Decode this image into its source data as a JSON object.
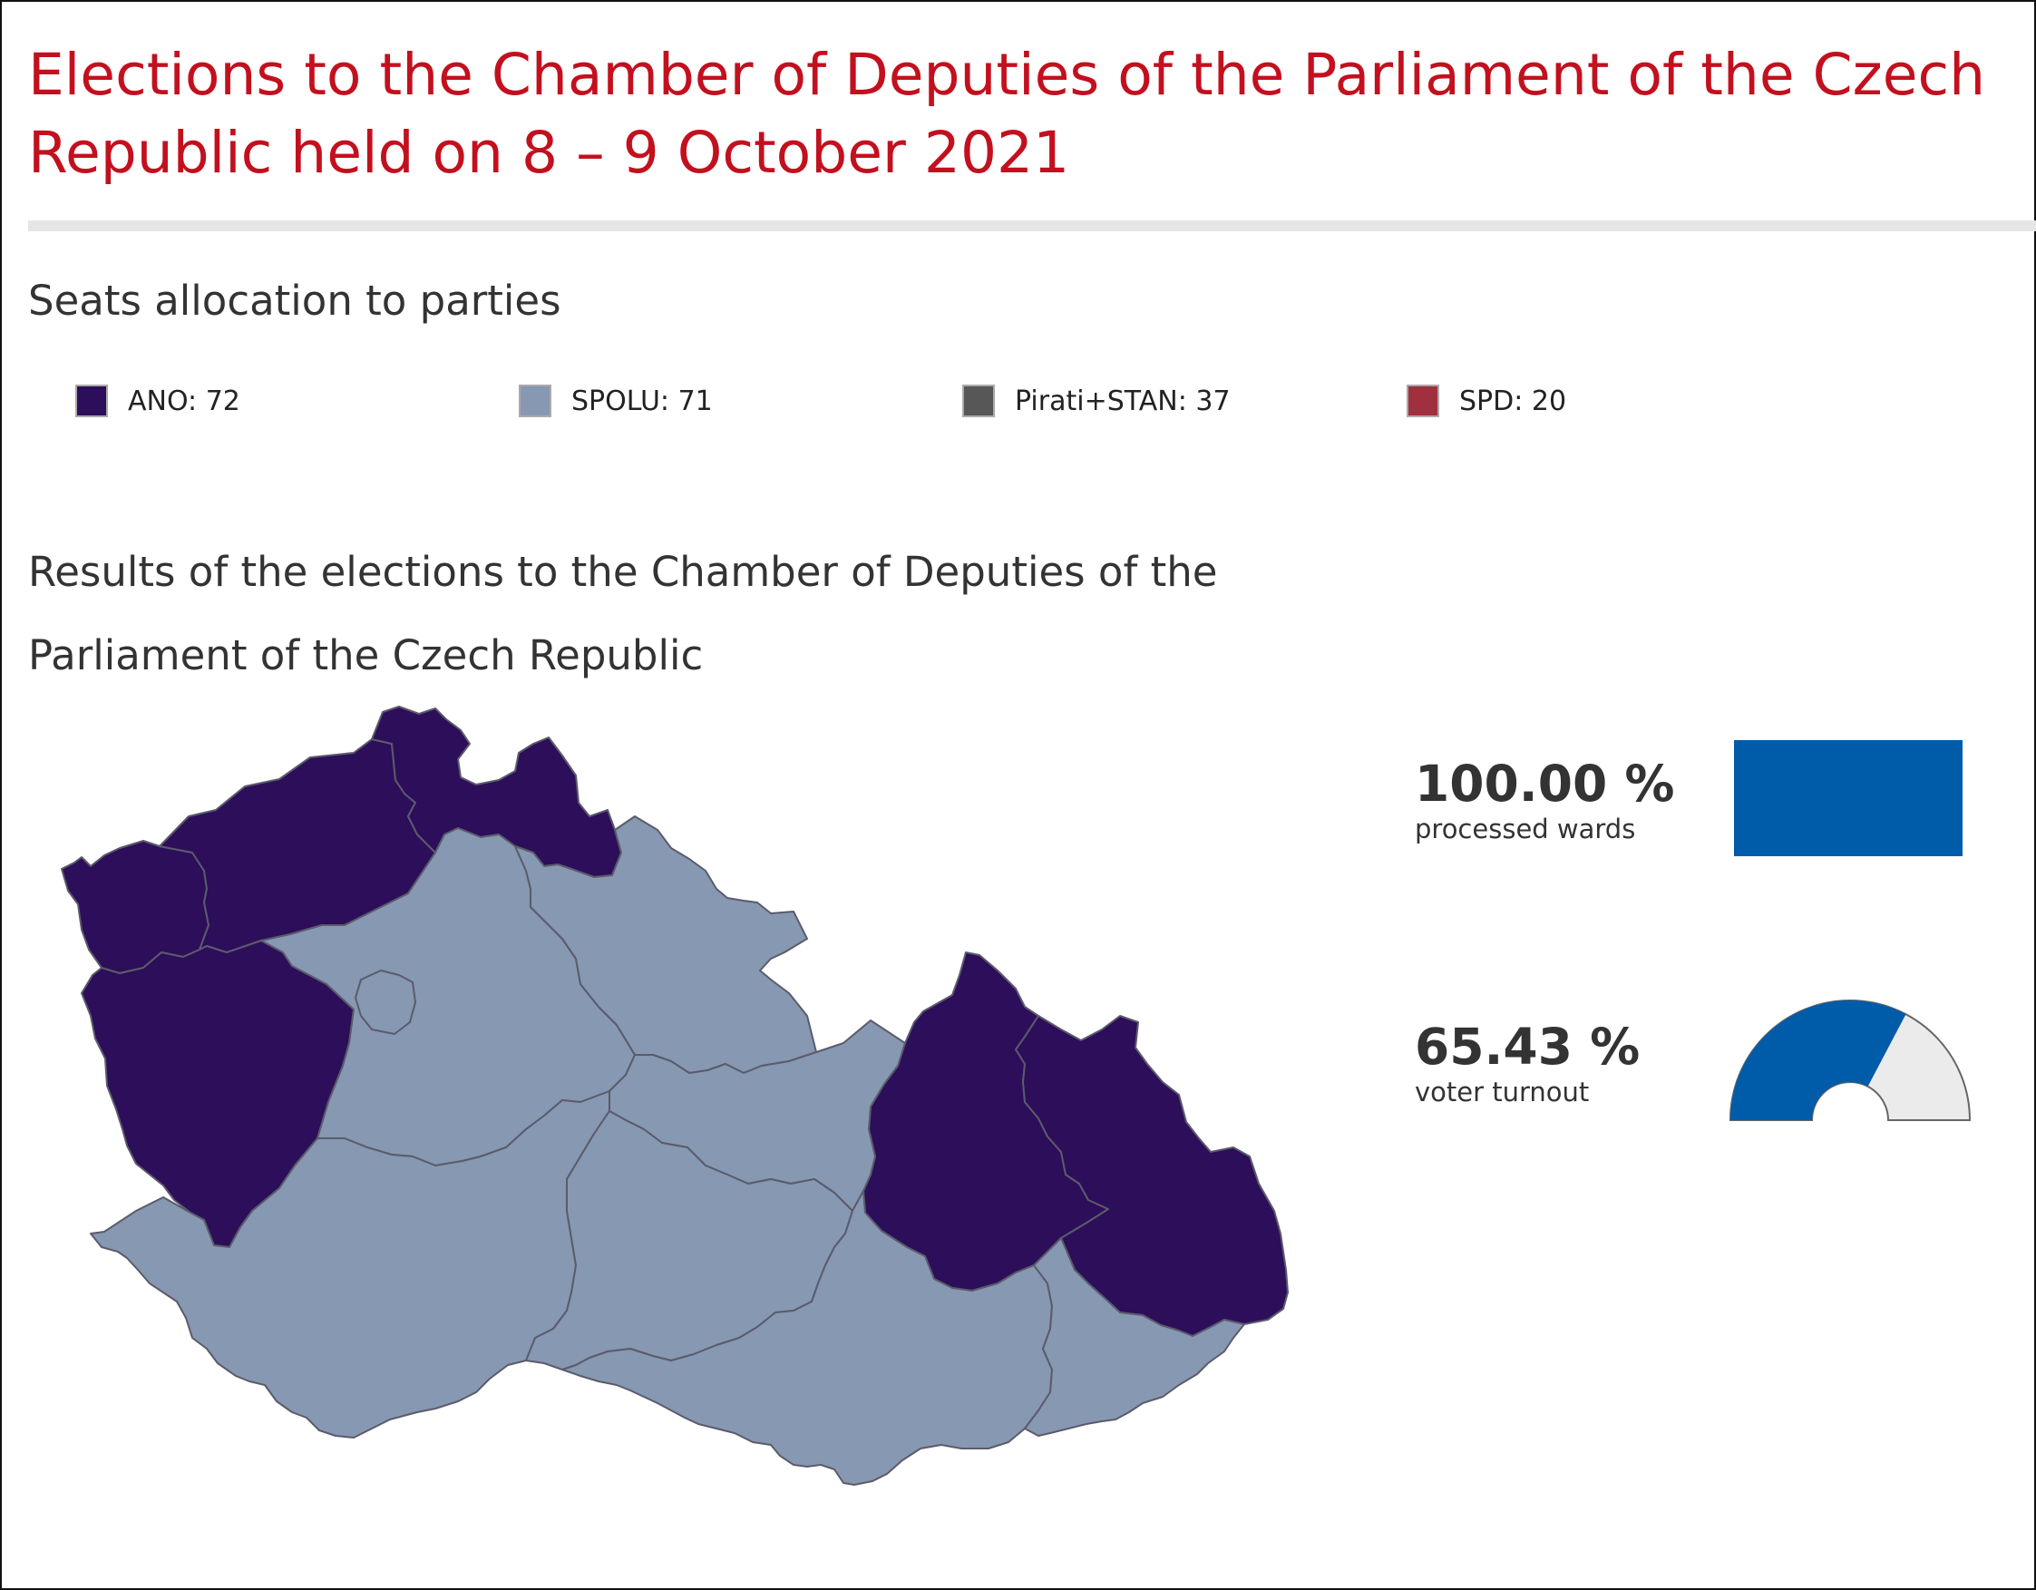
{
  "header": {
    "title": "Elections to the Chamber of Deputies of the Parliament of the Czech Republic held on 8 – 9 October 2021"
  },
  "seats_section": {
    "heading": "Seats allocation to parties",
    "parties": [
      {
        "label": "ANO: 72",
        "color": "#2d0e5a"
      },
      {
        "label": "SPOLU: 71",
        "color": "#8698b2"
      },
      {
        "label": "Pirati+STAN: 37",
        "color": "#575757"
      },
      {
        "label": "SPD: 20",
        "color": "#a0303e"
      }
    ]
  },
  "results_section": {
    "heading": "Results of the elections to the Chamber of Deputies of the Parliament of the Czech Republic",
    "regions": [
      {
        "name": "Karlovarsky",
        "winner": "ANO",
        "color": "#2d0e5a"
      },
      {
        "name": "Ustecky",
        "winner": "ANO",
        "color": "#2d0e5a"
      },
      {
        "name": "Liberecky",
        "winner": "ANO",
        "color": "#2d0e5a"
      },
      {
        "name": "Plzensky",
        "winner": "ANO",
        "color": "#2d0e5a"
      },
      {
        "name": "Olomoucky",
        "winner": "ANO",
        "color": "#2d0e5a"
      },
      {
        "name": "Moravskoslezsky",
        "winner": "ANO",
        "color": "#2d0e5a"
      },
      {
        "name": "Stredocesky",
        "winner": "SPOLU",
        "color": "#8698b2"
      },
      {
        "name": "Praha",
        "winner": "SPOLU",
        "color": "#8698b2"
      },
      {
        "name": "Kralovehradecky",
        "winner": "SPOLU",
        "color": "#8698b2"
      },
      {
        "name": "Pardubicky",
        "winner": "SPOLU",
        "color": "#8698b2"
      },
      {
        "name": "Jihocesky",
        "winner": "SPOLU",
        "color": "#8698b2"
      },
      {
        "name": "Vysocina",
        "winner": "SPOLU",
        "color": "#8698b2"
      },
      {
        "name": "Jihomoravsky",
        "winner": "SPOLU",
        "color": "#8698b2"
      },
      {
        "name": "Zlinsky",
        "winner": "SPOLU",
        "color": "#8698b2"
      }
    ]
  },
  "stats": {
    "processed": {
      "value": "100.00 %",
      "label": "processed wards",
      "fraction": 1.0,
      "color": "#005ba9"
    },
    "turnout": {
      "value": "65.43 %",
      "label": "voter turnout",
      "fraction": 0.6543,
      "color": "#005ba9",
      "track_color": "#ebebeb"
    }
  }
}
